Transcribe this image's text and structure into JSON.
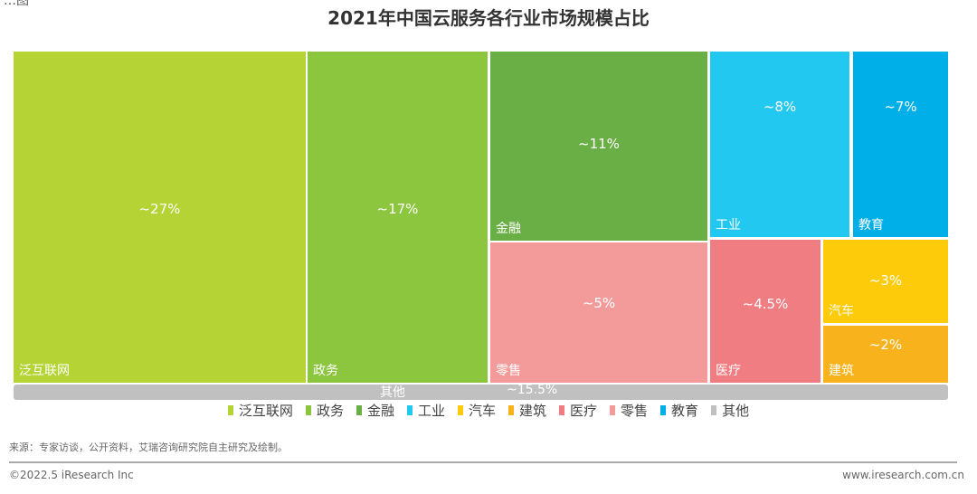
{
  "corner_text": "…图",
  "chart_data": {
    "type": "treemap",
    "title": "2021年中国云服务各行业市场规模占比",
    "items": [
      {
        "name": "泛互联网",
        "value": 27,
        "label": "~27%",
        "color": "#b5d334"
      },
      {
        "name": "政务",
        "value": 17,
        "label": "~17%",
        "color": "#8cc63f"
      },
      {
        "name": "金融",
        "value": 11,
        "label": "~11%",
        "color": "#6aaf45"
      },
      {
        "name": "工业",
        "value": 8,
        "label": "~8%",
        "color": "#22c8f0"
      },
      {
        "name": "教育",
        "value": 7,
        "label": "~7%",
        "color": "#00aee8"
      },
      {
        "name": "零售",
        "value": 5,
        "label": "~5%",
        "color": "#f39b9b"
      },
      {
        "name": "医疗",
        "value": 4.5,
        "label": "~4.5%",
        "color": "#ef7d82"
      },
      {
        "name": "汽车",
        "value": 3,
        "label": "~3%",
        "color": "#fdcb0a"
      },
      {
        "name": "建筑",
        "value": 2,
        "label": "~2%",
        "color": "#f8b21b"
      },
      {
        "name": "其他",
        "value": 15.5,
        "label": "~15.5%",
        "color": "#c0c0c0"
      }
    ],
    "legend": [
      {
        "name": "泛互联网",
        "color": "#b5d334"
      },
      {
        "name": "政务",
        "color": "#8cc63f"
      },
      {
        "name": "金融",
        "color": "#6aaf45"
      },
      {
        "name": "工业",
        "color": "#22c8f0"
      },
      {
        "name": "汽车",
        "color": "#fdcb0a"
      },
      {
        "name": "建筑",
        "color": "#f8b21b"
      },
      {
        "name": "医疗",
        "color": "#ef7d82"
      },
      {
        "name": "零售",
        "color": "#f39b9b"
      },
      {
        "name": "教育",
        "color": "#00aee8"
      },
      {
        "name": "其他",
        "color": "#c0c0c0"
      }
    ],
    "legend_position": "bottom"
  },
  "footer": {
    "source": "来源：专家访谈，公开资料，艾瑞咨询研究院自主研究及绘制。",
    "copyright": "©2022.5 iResearch Inc",
    "website": "www.iresearch.com.cn"
  }
}
